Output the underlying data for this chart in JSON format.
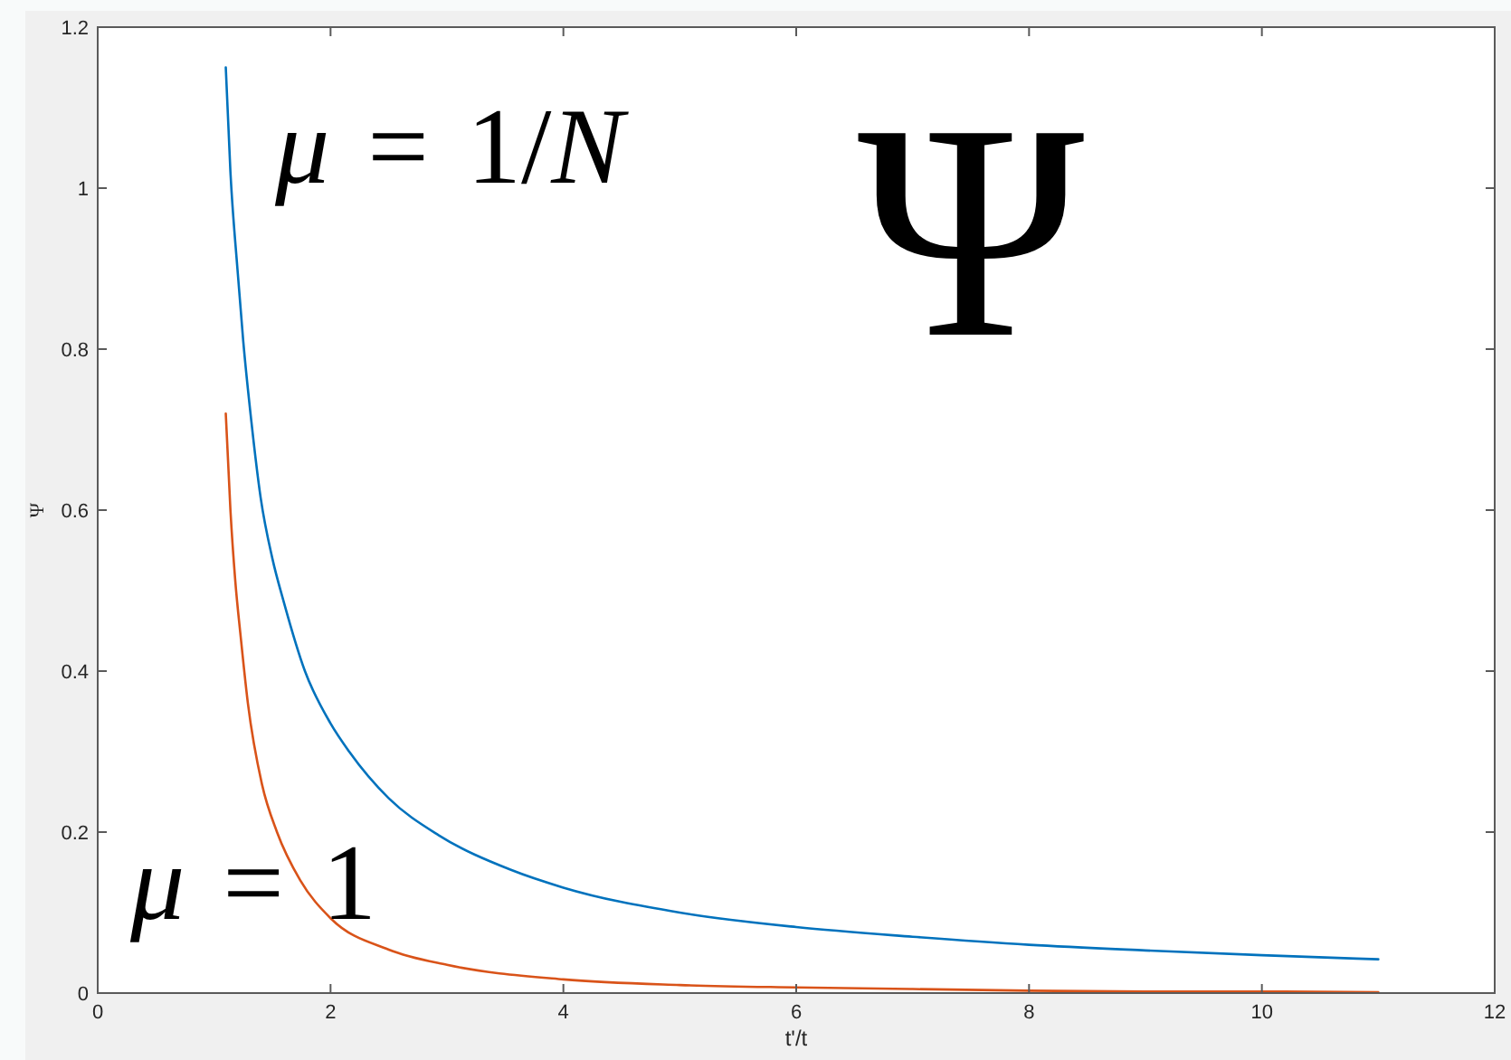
{
  "chart_data": {
    "type": "line",
    "xlabel": "t'/t",
    "ylabel": "Ψ",
    "xlim": [
      0,
      12
    ],
    "ylim": [
      0,
      1.2
    ],
    "xticks": [
      0,
      2,
      4,
      6,
      8,
      10,
      12
    ],
    "yticks": [
      0,
      0.2,
      0.4,
      0.6,
      0.8,
      1,
      1.2
    ],
    "series": [
      {
        "name": "μ = 1/N",
        "color": "#0072bd",
        "x": [
          1.1,
          1.14,
          1.2,
          1.25,
          1.32,
          1.4,
          1.5,
          1.6,
          1.78,
          2,
          2.16,
          2.5,
          2.93,
          3.55,
          4,
          5,
          6,
          7,
          8,
          9,
          10,
          11
        ],
        "values": [
          1.15,
          1.02,
          0.9,
          0.81,
          0.71,
          0.615,
          0.54,
          0.485,
          0.4,
          0.335,
          0.3,
          0.242,
          0.196,
          0.153,
          0.131,
          0.1,
          0.082,
          0.07,
          0.06,
          0.053,
          0.047,
          0.042
        ]
      },
      {
        "name": "μ = 1",
        "color": "#d95319",
        "x": [
          1.1,
          1.14,
          1.18,
          1.23,
          1.29,
          1.41,
          1.54,
          1.74,
          2,
          2.5,
          3,
          4,
          5,
          6,
          7,
          8,
          9,
          10,
          11
        ],
        "values": [
          0.72,
          0.6,
          0.515,
          0.44,
          0.36,
          0.26,
          0.2,
          0.14,
          0.093,
          0.054,
          0.035,
          0.017,
          0.01,
          0.007,
          0.005,
          0.003,
          0.002,
          0.002,
          0.001
        ]
      }
    ],
    "annotations": [
      "Ψ"
    ]
  }
}
